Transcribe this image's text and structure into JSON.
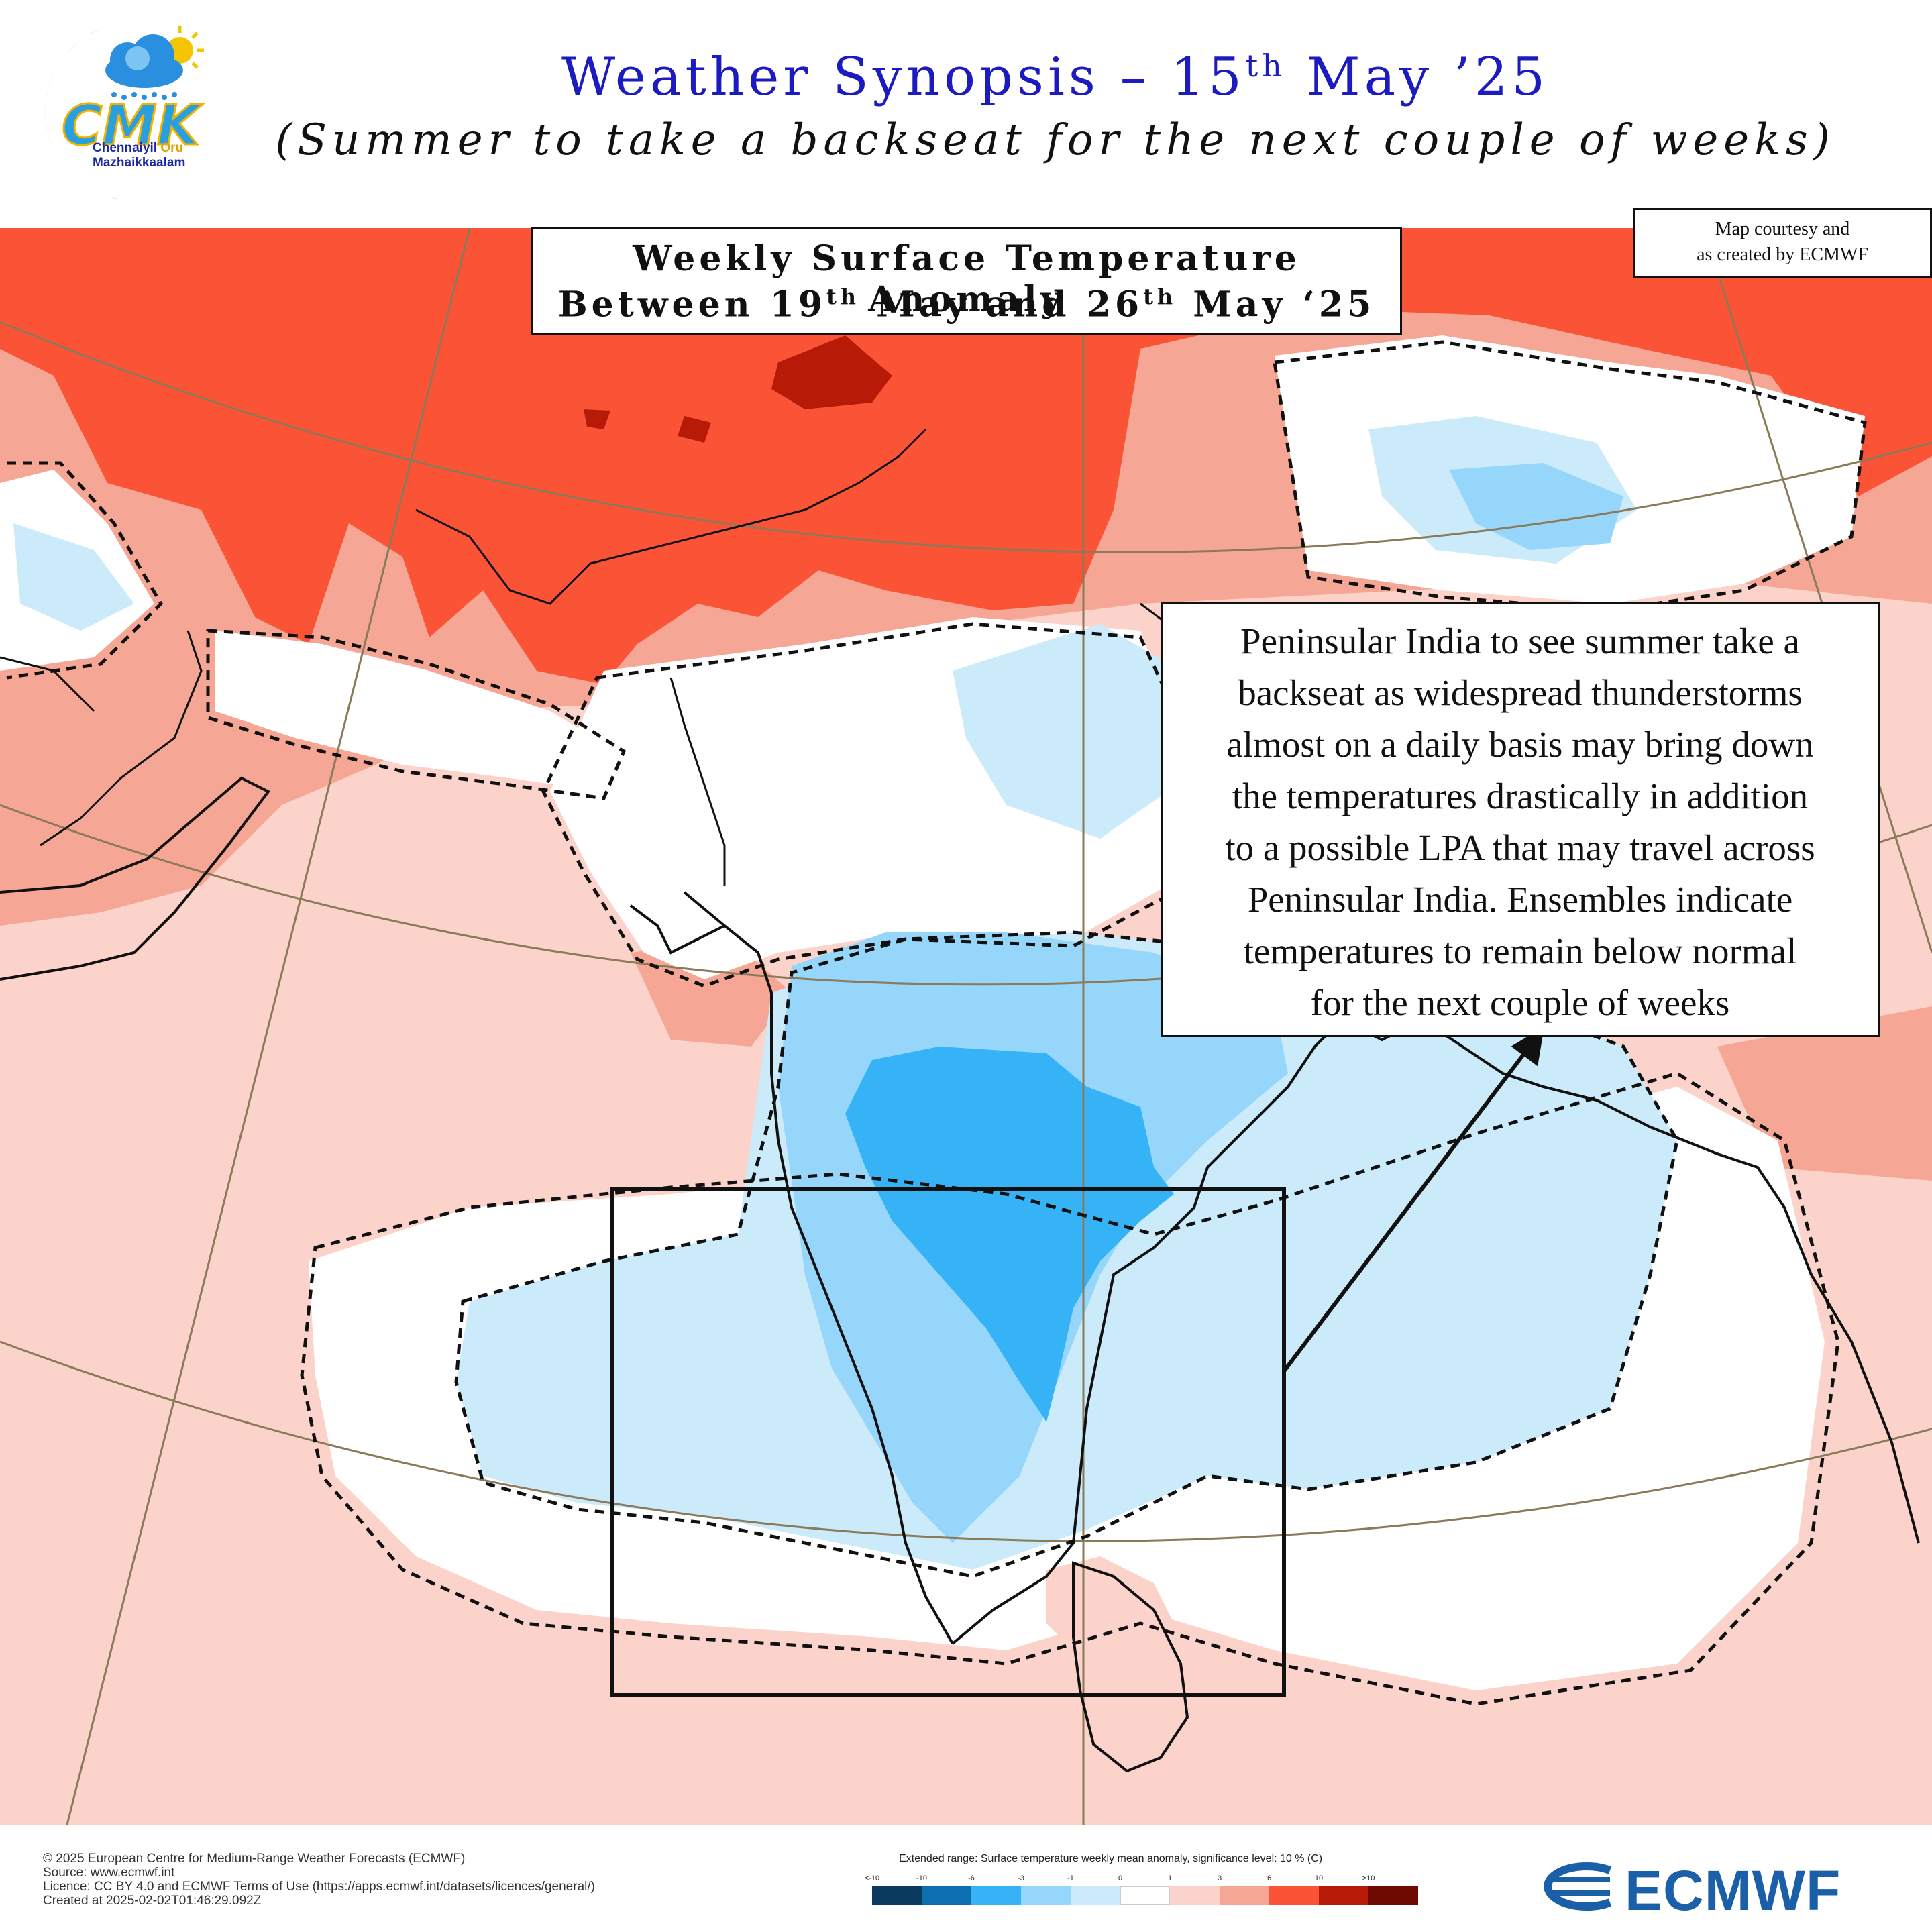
{
  "header": {
    "title_prefix": "Weather Synopsis – 15",
    "title_sup": "th",
    "title_suffix": " May ’25",
    "subtitle": "(Summer to take a backseat for the next couple of  weeks)"
  },
  "logo": {
    "letters": "CMK",
    "line1_a": "Chennaiyil",
    "line1_b": " Oru",
    "line2": "Mazhaikkaalam",
    "colors": {
      "crescent": "#1e6fd1",
      "cloud": "#2b8fe0",
      "sun": "#f5c400",
      "letters": "#2a9fe0"
    }
  },
  "weekly_box": {
    "line1": "Weekly Surface Temperature Anomaly",
    "line2_a": "Between 19",
    "line2_sup1": "th",
    "line2_b": " May and 26",
    "line2_sup2": "th",
    "line2_c": " May ‘25"
  },
  "courtesy": {
    "line1": "Map courtesy and",
    "line2": "as created by ECMWF"
  },
  "callout": {
    "lines": [
      "Peninsular India to see summer take a",
      "backseat as widespread thunderstorms",
      "almost on a daily basis may bring down",
      "the temperatures drastically in addition",
      "to a possible LPA that may travel across",
      "Peninsular India. Ensembles indicate",
      "temperatures to remain below normal",
      "for the next couple of  weeks"
    ]
  },
  "map": {
    "type": "temperature anomaly map",
    "highlight": "Peninsular India rectangle",
    "colors": {
      "warm_strong": "#fb5336",
      "warm_very_strong": "#b81a08",
      "warm_moderate": "#f6a694",
      "warm_light": "#fbd3ca",
      "neutral": "#ffffff",
      "cool_light": "#cbebfb",
      "cool_moderate": "#97d6fb",
      "cool_strong": "#36b2f6"
    }
  },
  "footer": {
    "copyright": "© 2025 European Centre for Medium-Range Weather Forecasts (ECMWF)",
    "source": "Source: www.ecmwf.int",
    "licence": "Licence: CC BY 4.0 and ECMWF Terms of Use (https://apps.ecmwf.int/datasets/licences/general/)",
    "created": "Created at 2025-02-02T01:46:29.092Z"
  },
  "legend": {
    "title": "Extended range: Surface temperature weekly mean anomaly, significance level: 10 % (C)",
    "ticks": [
      "<-10",
      "-10",
      "-6",
      "-3",
      "-1",
      "0",
      "1",
      "3",
      "6",
      "10",
      ">10"
    ],
    "colors": [
      "#0a3a5e",
      "#0d6fb0",
      "#36b2f6",
      "#97d6fb",
      "#cbebfb",
      "#ffffff",
      "#fbd3ca",
      "#f6a694",
      "#fb5336",
      "#b81a08",
      "#6e0a02"
    ]
  },
  "ecmwf_logo": {
    "text": "ECMWF",
    "color": "#1a5fa8"
  }
}
